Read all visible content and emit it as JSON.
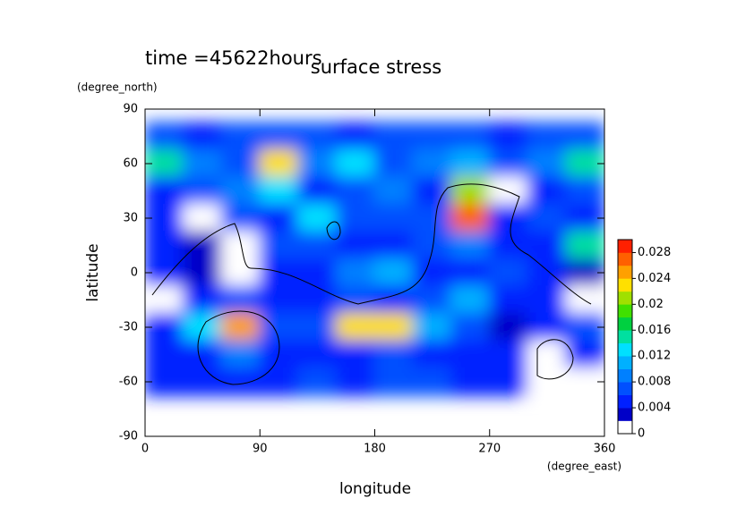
{
  "chart_data": {
    "type": "contour",
    "title": "surface stress",
    "subtitle": "time =45622hours",
    "x_label": "longitude",
    "y_label": "latitude",
    "x_unit": "(degree_east)",
    "y_unit": "(degree_north)",
    "xlim": [
      0,
      360
    ],
    "xticks": [
      0,
      90,
      180,
      270,
      360
    ],
    "ylim": [
      -90,
      90
    ],
    "yticks": [
      -90,
      -60,
      -30,
      0,
      30,
      60,
      90
    ],
    "x": [
      15,
      45,
      75,
      105,
      135,
      165,
      195,
      225,
      255,
      285,
      315,
      345
    ],
    "y": [
      75,
      60,
      45,
      30,
      15,
      0,
      -15,
      -30,
      -45,
      -60
    ],
    "z": [
      [
        0.006,
        0.005,
        0.007,
        0.006,
        0.006,
        0.005,
        0.006,
        0.007,
        0.006,
        0.005,
        0.006,
        0.006
      ],
      [
        0.014,
        0.008,
        0.006,
        0.022,
        0.008,
        0.012,
        0.006,
        0.008,
        0.01,
        0.006,
        0.008,
        0.014
      ],
      [
        0.004,
        0.006,
        0.008,
        0.012,
        0.004,
        0.006,
        0.008,
        0.004,
        0.02,
        0.001,
        0.004,
        0.006
      ],
      [
        0.004,
        0.001,
        0.006,
        0.004,
        0.012,
        0.006,
        0.006,
        0.006,
        0.026,
        0.004,
        0.006,
        0.004
      ],
      [
        0.004,
        0.003,
        0.001,
        0.006,
        0.006,
        0.004,
        0.004,
        0.006,
        0.008,
        0.004,
        0.004,
        0.014
      ],
      [
        0.004,
        0.003,
        0.001,
        0.004,
        0.004,
        0.008,
        0.01,
        0.004,
        0.004,
        0.006,
        0.004,
        0.003
      ],
      [
        0.001,
        0.004,
        0.006,
        0.004,
        0.004,
        0.006,
        0.004,
        0.006,
        0.01,
        0.004,
        0.004,
        0.001
      ],
      [
        0.004,
        0.012,
        0.024,
        0.006,
        0.006,
        0.022,
        0.022,
        0.01,
        0.006,
        0.003,
        0.004,
        0.006
      ],
      [
        0.004,
        0.004,
        0.008,
        0.004,
        0.004,
        0.004,
        0.006,
        0.004,
        0.004,
        0.004,
        0.001,
        0.004
      ],
      [
        0.004,
        0.004,
        0.004,
        0.004,
        0.006,
        0.004,
        0.006,
        0.006,
        0.004,
        0.004,
        0.001,
        0.001
      ]
    ],
    "clim": [
      0,
      0.03
    ],
    "cticks": [
      0,
      0.004,
      0.008,
      0.012,
      0.016,
      0.02,
      0.024,
      0.028
    ],
    "colors": [
      "#ffffff",
      "#0000c8",
      "#0020ff",
      "#0050ff",
      "#0080ff",
      "#00b0ff",
      "#00e0ff",
      "#00e0a0",
      "#00d040",
      "#40e000",
      "#a0e000",
      "#ffe000",
      "#ffa000",
      "#ff6000",
      "#ff2000"
    ]
  }
}
